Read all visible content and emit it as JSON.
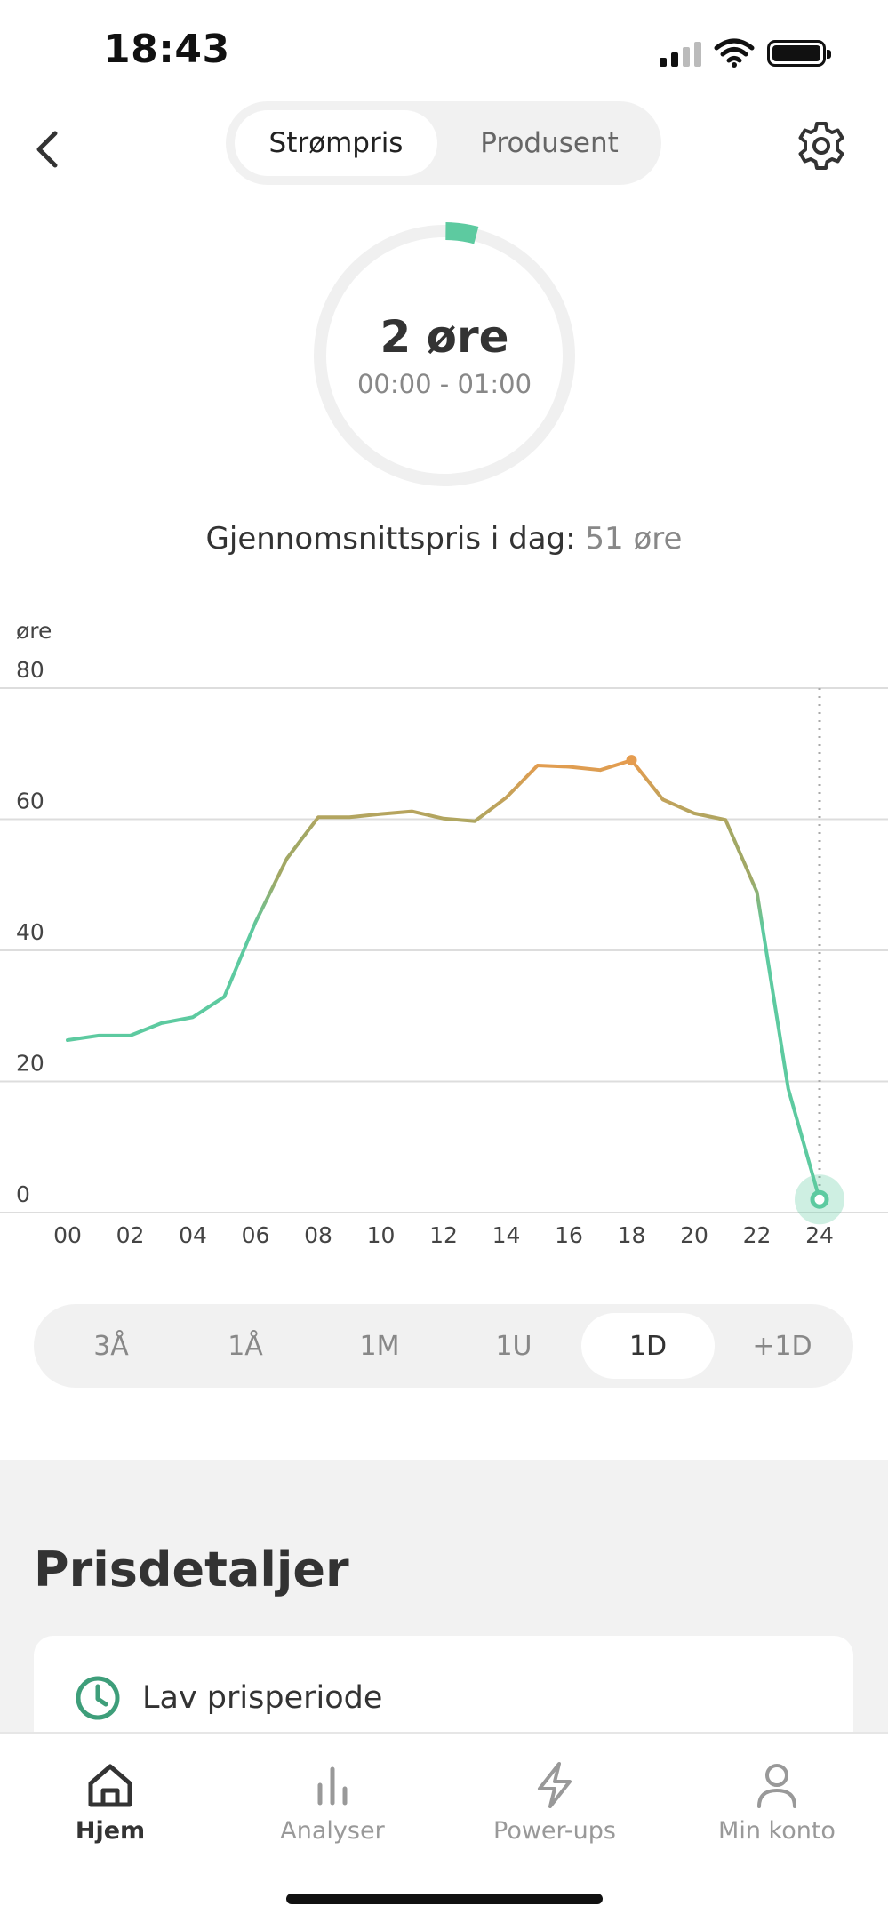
{
  "status": {
    "time": "18:43"
  },
  "tabs": [
    {
      "label": "Strømpris",
      "active": true
    },
    {
      "label": "Produsent",
      "active": false
    }
  ],
  "gauge": {
    "value": "2 øre",
    "range": "00:00 - 01:00",
    "fraction": 0.03,
    "color": "#5dcaa0"
  },
  "average": {
    "label": "Gjennomsnittspris i dag:",
    "value": "51 øre"
  },
  "chart_data": {
    "type": "line",
    "ylabel": "øre",
    "ylim": [
      0,
      80
    ],
    "y_ticks": [
      "0",
      "20",
      "40",
      "60",
      "80"
    ],
    "x_ticks": [
      "00",
      "02",
      "04",
      "06",
      "08",
      "10",
      "12",
      "14",
      "16",
      "18",
      "20",
      "22",
      "24"
    ],
    "x_range": [
      0,
      24
    ],
    "series": [
      {
        "x": [
          0,
          1,
          2,
          3,
          4,
          5,
          6,
          7,
          8,
          9,
          10,
          11,
          12,
          13,
          14,
          15,
          16,
          17,
          18,
          19,
          20,
          21,
          22,
          23,
          24
        ],
        "values": [
          26.3,
          27.0,
          27.0,
          28.9,
          29.8,
          32.9,
          44.3,
          54.0,
          60.3,
          60.3,
          60.8,
          61.2,
          60.1,
          59.7,
          63.3,
          68.2,
          68.0,
          67.5,
          69.0,
          63.0,
          60.9,
          59.9,
          48.9,
          18.9,
          2.0
        ]
      }
    ],
    "highlight_index": 24,
    "max_index": 18,
    "grid": true,
    "colors": {
      "low": "#5dcaa0",
      "mid": "#a2a865",
      "high": "#e59c4f",
      "grid": "#dddddd"
    }
  },
  "range_tabs": [
    {
      "label": "3Å",
      "active": false
    },
    {
      "label": "1Å",
      "active": false
    },
    {
      "label": "1M",
      "active": false
    },
    {
      "label": "1U",
      "active": false
    },
    {
      "label": "1D",
      "active": true
    },
    {
      "label": "+1D",
      "active": false
    }
  ],
  "details": {
    "title": "Prisdetaljer",
    "card_label": "Lav prisperiode",
    "accent": "#3e9e7a"
  },
  "nav": [
    {
      "label": "Hjem",
      "icon": "home-icon",
      "active": true
    },
    {
      "label": "Analyser",
      "icon": "bar-chart-icon",
      "active": false
    },
    {
      "label": "Power-ups",
      "icon": "lightning-icon",
      "active": false
    },
    {
      "label": "Min konto",
      "icon": "person-icon",
      "active": false
    }
  ]
}
